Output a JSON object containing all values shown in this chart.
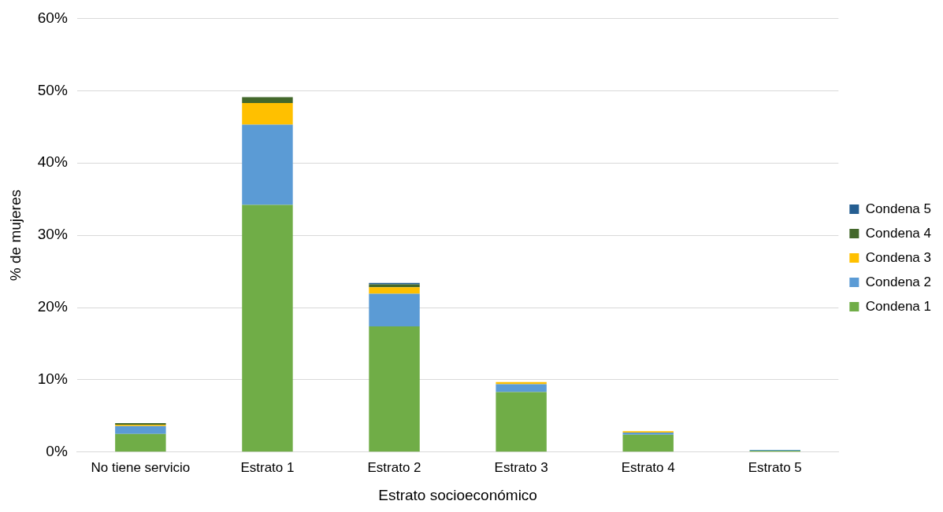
{
  "chart_data": {
    "type": "bar",
    "stacked": true,
    "xlabel": "Estrato socioeconómico",
    "ylabel": "% de mujeres",
    "categories": [
      "No tiene servicio",
      "Estrato 1",
      "Estrato 2",
      "Estrato 3",
      "Estrato 4",
      "Estrato 5"
    ],
    "series": [
      {
        "name": "Condena 1",
        "color": "#70ad47",
        "values": [
          2.5,
          34.2,
          17.4,
          8.3,
          2.4,
          0.2
        ]
      },
      {
        "name": "Condena 2",
        "color": "#5b9bd5",
        "values": [
          1.1,
          11.1,
          4.5,
          1.1,
          0.3,
          0.1
        ]
      },
      {
        "name": "Condena 3",
        "color": "#ffc000",
        "values": [
          0.2,
          3.0,
          0.9,
          0.3,
          0.2,
          0
        ]
      },
      {
        "name": "Condena 4",
        "color": "#43682b",
        "values": [
          0.2,
          0.8,
          0.4,
          0,
          0,
          0
        ]
      },
      {
        "name": "Condena 5",
        "color": "#255e91",
        "values": [
          0,
          0,
          0.2,
          0,
          0,
          0
        ]
      }
    ],
    "ylim": [
      0,
      60
    ],
    "yticks": [
      {
        "value": 0,
        "label": "0%"
      },
      {
        "value": 10,
        "label": "10%"
      },
      {
        "value": 20,
        "label": "20%"
      },
      {
        "value": 30,
        "label": "30%"
      },
      {
        "value": 40,
        "label": "40%"
      },
      {
        "value": 50,
        "label": "50%"
      },
      {
        "value": 60,
        "label": "60%"
      }
    ],
    "grid": "y",
    "legend": "right"
  }
}
